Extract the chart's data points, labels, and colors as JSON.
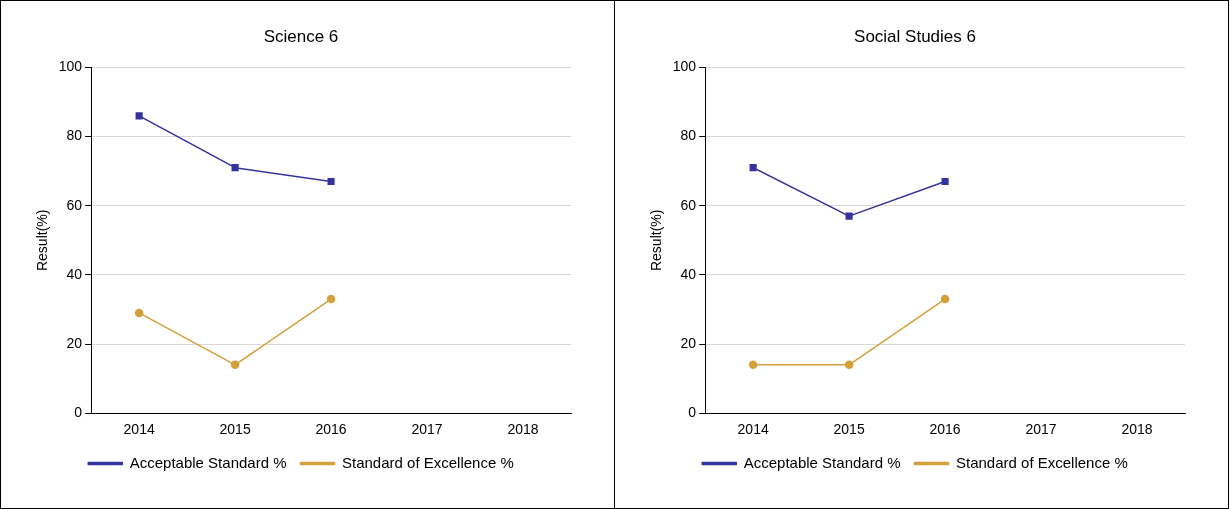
{
  "chart_data": [
    {
      "type": "line",
      "title": "Science 6",
      "ylabel": "Result(%)",
      "categories": [
        "2014",
        "2015",
        "2016",
        "2017",
        "2018"
      ],
      "ylim": [
        0,
        100
      ],
      "yticks": [
        0,
        20,
        40,
        60,
        80,
        100
      ],
      "grid": "y",
      "legend": "bottom",
      "series": [
        {
          "name": "Acceptable Standard %",
          "color": "#3434a0",
          "marker": "square",
          "values": [
            86,
            71,
            67,
            null,
            null
          ]
        },
        {
          "name": "Standard of Excellence %",
          "color": "#d4a03c",
          "marker": "circle",
          "values": [
            29,
            14,
            33,
            null,
            null
          ]
        }
      ]
    },
    {
      "type": "line",
      "title": "Social Studies 6",
      "ylabel": "Result(%)",
      "categories": [
        "2014",
        "2015",
        "2016",
        "2017",
        "2018"
      ],
      "ylim": [
        0,
        100
      ],
      "yticks": [
        0,
        20,
        40,
        60,
        80,
        100
      ],
      "grid": "y",
      "legend": "bottom",
      "series": [
        {
          "name": "Acceptable Standard %",
          "color": "#3434a0",
          "marker": "square",
          "values": [
            71,
            57,
            67,
            null,
            null
          ]
        },
        {
          "name": "Standard of Excellence %",
          "color": "#d4a03c",
          "marker": "circle",
          "values": [
            14,
            14,
            33,
            null,
            null
          ]
        }
      ]
    }
  ]
}
